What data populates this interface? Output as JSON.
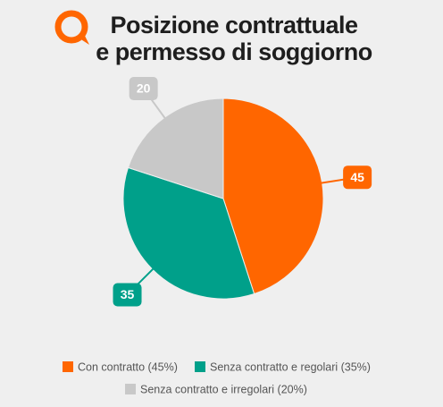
{
  "chart_data": {
    "type": "pie",
    "title": [
      "Posizione contrattuale",
      "e permesso di soggiorno"
    ],
    "categories": [
      "Con contratto (45%)",
      "Senza contratto e regolari (35%)",
      "Senza contratto e irregolari (20%)"
    ],
    "values": [
      45,
      35,
      20
    ],
    "colors": [
      "#ff6600",
      "#00a08a",
      "#c8c8c8"
    ]
  }
}
